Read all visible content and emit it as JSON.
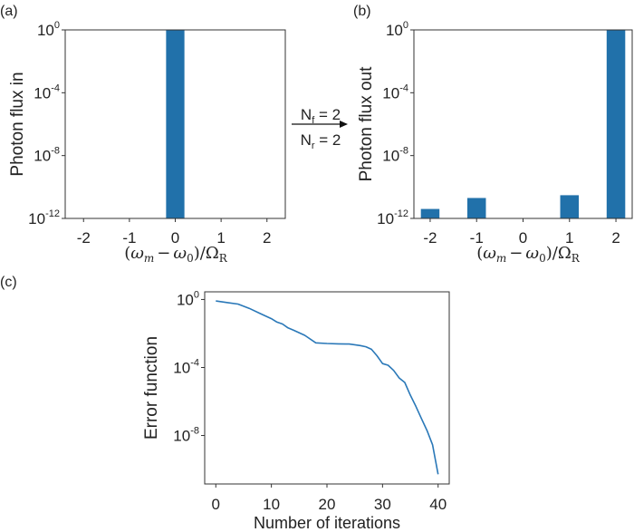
{
  "colors": {
    "bar": "#2171aa",
    "line": "#2a78b8",
    "axis": "#333333",
    "text": "#222222"
  },
  "chart_data": [
    {
      "id": "a",
      "panel_label": "(a)",
      "type": "bar",
      "yscale": "log",
      "ylabel": "Photon flux in",
      "xlabel": "(ω_m − ω_0)/Ω_R",
      "xlabel_parts": {
        "open": "(",
        "w1": "ω",
        "sub1": "m",
        "minus": "−",
        "w2": "ω",
        "sub2": "0",
        "close": ")/",
        "omega": "Ω",
        "sub3": "R"
      },
      "categories": [
        -2,
        -1,
        0,
        1,
        2
      ],
      "xtick_labels": [
        "-2",
        "-1",
        "0",
        "1",
        "2"
      ],
      "xlim": [
        -2.4,
        2.4
      ],
      "ylim_exp": [
        -12,
        0
      ],
      "ytick_exps": [
        0,
        -4,
        -8,
        -12
      ],
      "ytick_labels": [
        {
          "base": "10",
          "exp": "0"
        },
        {
          "base": "10",
          "exp": "-4"
        },
        {
          "base": "10",
          "exp": "-8"
        },
        {
          "base": "10",
          "exp": "-12"
        }
      ],
      "bar_width": 0.4,
      "values": [
        0,
        0,
        1,
        0,
        0
      ]
    },
    {
      "id": "b",
      "panel_label": "(b)",
      "type": "bar",
      "yscale": "log",
      "ylabel": "Photon flux out",
      "xlabel": "(ω_m − ω_0)/Ω_R",
      "xlabel_parts": {
        "open": "(",
        "w1": "ω",
        "sub1": "m",
        "minus": "−",
        "w2": "ω",
        "sub2": "0",
        "close": ")/",
        "omega": "Ω",
        "sub3": "R"
      },
      "categories": [
        -2,
        -1,
        0,
        1,
        2
      ],
      "xtick_labels": [
        "-2",
        "-1",
        "0",
        "1",
        "2"
      ],
      "xlim": [
        -2.35,
        2.35
      ],
      "ylim_exp": [
        -12,
        0
      ],
      "ytick_exps": [
        0,
        -4,
        -8,
        -12
      ],
      "ytick_labels": [
        {
          "base": "10",
          "exp": "0"
        },
        {
          "base": "10",
          "exp": "-4"
        },
        {
          "base": "10",
          "exp": "-8"
        },
        {
          "base": "10",
          "exp": "-12"
        }
      ],
      "bar_width": 0.4,
      "values": [
        4e-12,
        2e-11,
        0,
        3e-11,
        1
      ]
    },
    {
      "id": "c",
      "panel_label": "(c)",
      "type": "line",
      "yscale": "log",
      "ylabel": "Error function",
      "xlabel": "Number of iterations",
      "xlim": [
        -2,
        42
      ],
      "ylim_exp": [
        -10.85,
        0.45
      ],
      "xticks": [
        0,
        10,
        20,
        30,
        40
      ],
      "xtick_labels": [
        "0",
        "10",
        "20",
        "30",
        "40"
      ],
      "ytick_exps": [
        0,
        -4,
        -8
      ],
      "ytick_labels": [
        {
          "base": "10",
          "exp": "0"
        },
        {
          "base": "10",
          "exp": "-4"
        },
        {
          "base": "10",
          "exp": "-8"
        }
      ],
      "x": [
        0,
        2,
        4,
        6,
        8,
        10,
        11,
        12,
        13,
        14,
        16,
        18,
        20,
        22,
        24,
        26,
        27,
        28,
        29,
        30,
        31,
        32,
        33,
        34,
        35,
        36,
        37,
        38,
        39,
        40
      ],
      "log10_y": [
        -0.09,
        -0.18,
        -0.27,
        -0.52,
        -0.83,
        -1.13,
        -1.33,
        -1.44,
        -1.67,
        -1.81,
        -2.11,
        -2.55,
        -2.59,
        -2.61,
        -2.62,
        -2.71,
        -2.78,
        -2.93,
        -3.31,
        -3.77,
        -3.87,
        -4.17,
        -4.62,
        -4.88,
        -5.62,
        -6.29,
        -7.0,
        -7.71,
        -8.55,
        -10.28
      ]
    }
  ],
  "arrow": {
    "top": {
      "N": "N",
      "sub": "f",
      "eq": " = 2"
    },
    "bottom": {
      "N": "N",
      "sub": "r",
      "eq": " = 2"
    }
  }
}
